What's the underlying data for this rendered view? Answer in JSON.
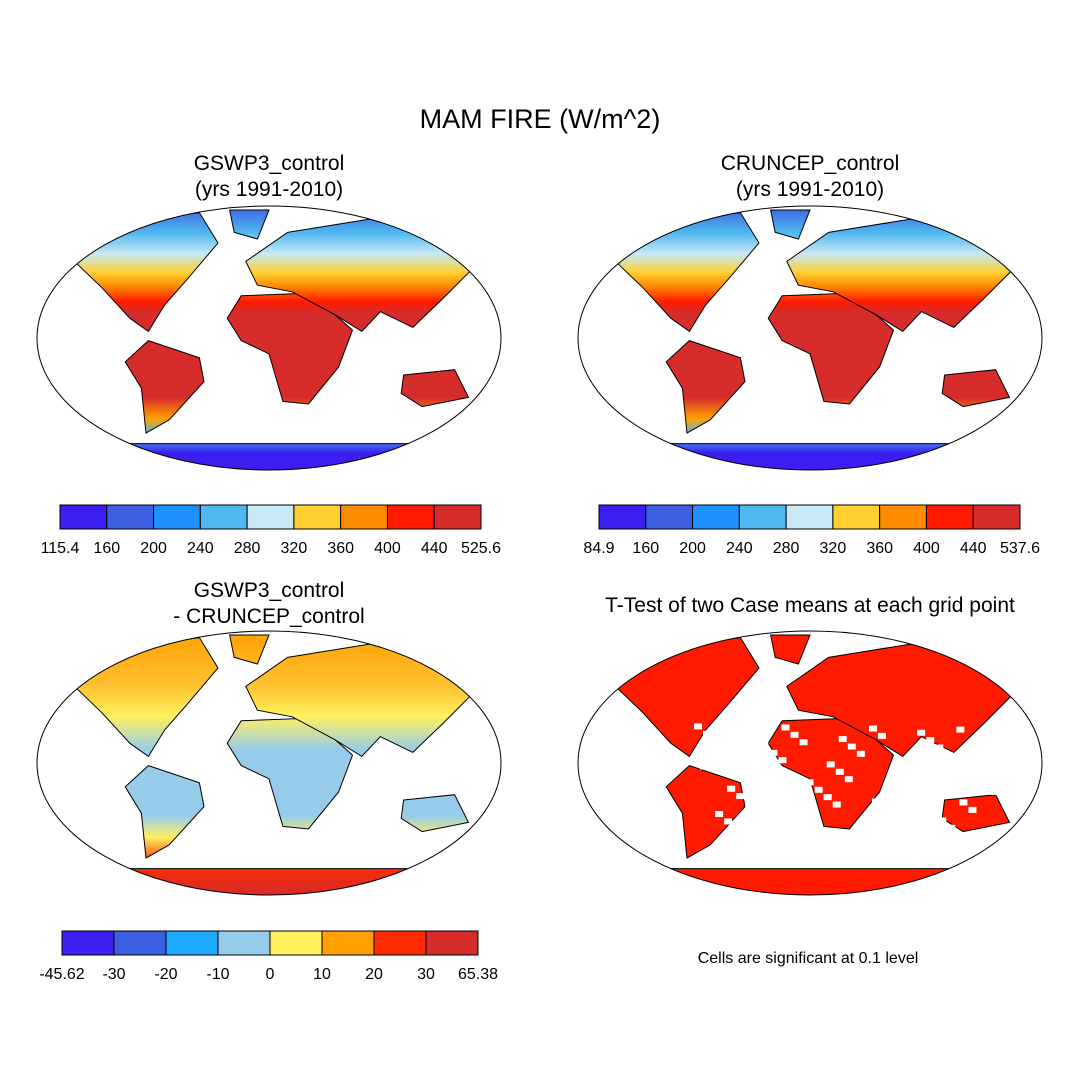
{
  "title": "MAM FIRE (W/m^2)",
  "panels": [
    {
      "title": [
        "GSWP3_control",
        "(yrs 1991-2010)"
      ],
      "colorbar": {
        "colors": [
          "#3a1ff0",
          "#3b5fe0",
          "#1e90ff",
          "#4fb8f0",
          "#c8e8f5",
          "#ffd030",
          "#ff8c00",
          "#ff1a00",
          "#d62c2c"
        ],
        "labels": [
          "115.4",
          "160",
          "200",
          "240",
          "280",
          "320",
          "360",
          "400",
          "440",
          "525.6"
        ]
      }
    },
    {
      "title": [
        "CRUNCEP_control",
        "(yrs 1991-2010)"
      ],
      "colorbar": {
        "colors": [
          "#3a1ff0",
          "#3b5fe0",
          "#1e90ff",
          "#4fb8f0",
          "#c8e8f5",
          "#ffd030",
          "#ff8c00",
          "#ff1a00",
          "#d62c2c"
        ],
        "labels": [
          "84.9",
          "160",
          "200",
          "240",
          "280",
          "320",
          "360",
          "400",
          "440",
          "537.6"
        ]
      }
    },
    {
      "title": [
        "GSWP3_control",
        "- CRUNCEP_control"
      ],
      "colorbar": {
        "colors": [
          "#3a1ff0",
          "#3b5fe0",
          "#1ea8ff",
          "#96ccea",
          "#fff060",
          "#ffa000",
          "#ff2a00",
          "#d62c2c"
        ],
        "labels": [
          "-45.62",
          "-30",
          "-20",
          "-10",
          "0",
          "10",
          "20",
          "30",
          "65.38"
        ]
      }
    },
    {
      "title": [
        "T-Test of two Case means at each grid point"
      ],
      "note": "Cells are significant at 0.1 level"
    }
  ]
}
